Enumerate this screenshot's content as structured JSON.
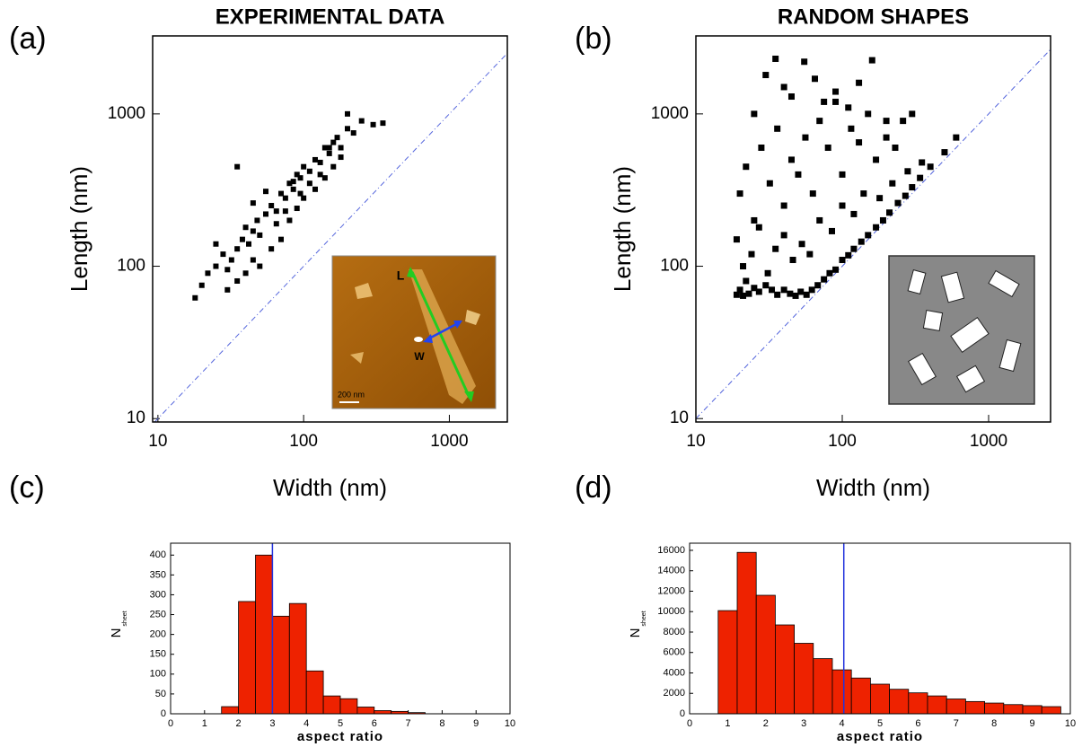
{
  "chart_data": [
    {
      "type": "scatter",
      "panel_label": "(a)",
      "title": "EXPERIMENTAL DATA",
      "xlabel": "Width (nm)",
      "ylabel": "Length (nm)",
      "log": true,
      "xlim": [
        9.2,
        2500
      ],
      "ylim": [
        9.5,
        3250
      ],
      "xticks": [
        10,
        100,
        1000
      ],
      "yticks": [
        10,
        100,
        1000
      ],
      "diagonal": true,
      "inset_labels": [
        "L",
        "W",
        "200 nm"
      ],
      "series": [
        {
          "color": "#000000",
          "x": [
            18,
            20,
            22,
            25,
            28,
            30,
            32,
            35,
            38,
            40,
            42,
            45,
            48,
            50,
            55,
            60,
            65,
            70,
            75,
            80,
            85,
            90,
            95,
            100,
            110,
            120,
            130,
            140,
            150,
            160,
            170,
            180,
            200,
            220,
            250,
            300,
            350,
            25,
            30,
            35,
            40,
            45,
            50,
            60,
            70,
            80,
            90,
            100,
            120,
            140,
            160,
            180,
            200,
            35,
            45,
            55,
            65,
            75,
            85,
            95,
            110,
            130,
            150
          ],
          "values": [
            62,
            75,
            90,
            100,
            120,
            95,
            110,
            130,
            150,
            180,
            140,
            170,
            200,
            160,
            220,
            250,
            230,
            300,
            280,
            350,
            320,
            400,
            380,
            450,
            420,
            500,
            480,
            600,
            550,
            650,
            700,
            600,
            800,
            750,
            900,
            850,
            870,
            140,
            70,
            80,
            90,
            110,
            100,
            130,
            150,
            200,
            240,
            280,
            320,
            380,
            450,
            520,
            1000,
            450,
            260,
            310,
            190,
            230,
            360,
            300,
            350,
            400,
            600
          ]
        }
      ]
    },
    {
      "type": "scatter",
      "panel_label": "(b)",
      "title": "RANDOM SHAPES",
      "xlabel": "Width (nm)",
      "ylabel": "Length (nm)",
      "log": true,
      "xlim": [
        10,
        2650
      ],
      "ylim": [
        9.5,
        3250
      ],
      "xticks": [
        10,
        100,
        1000
      ],
      "yticks": [
        10,
        100,
        1000
      ],
      "diagonal": true,
      "series": [
        {
          "color": "#000000",
          "x": [
            19,
            20,
            21,
            22,
            23,
            25,
            27,
            30,
            33,
            36,
            40,
            44,
            48,
            52,
            57,
            62,
            68,
            75,
            82,
            90,
            100,
            110,
            120,
            135,
            150,
            170,
            190,
            210,
            240,
            270,
            300,
            340,
            400,
            500,
            600,
            20,
            22,
            25,
            28,
            32,
            36,
            40,
            45,
            50,
            56,
            63,
            70,
            80,
            90,
            100,
            115,
            130,
            150,
            170,
            200,
            230,
            260,
            300,
            25,
            30,
            35,
            40,
            45,
            55,
            65,
            75,
            90,
            110,
            130,
            160,
            200,
            19,
            21,
            24,
            27,
            31,
            35,
            40,
            46,
            53,
            60,
            70,
            85,
            100,
            120,
            140,
            180,
            220,
            280,
            350
          ],
          "values": [
            65,
            70,
            64,
            80,
            66,
            72,
            68,
            75,
            70,
            65,
            70,
            66,
            64,
            68,
            65,
            70,
            75,
            82,
            90,
            95,
            110,
            118,
            130,
            145,
            160,
            180,
            200,
            225,
            260,
            290,
            330,
            380,
            450,
            560,
            700,
            300,
            450,
            200,
            600,
            350,
            800,
            250,
            500,
            400,
            700,
            300,
            900,
            600,
            1200,
            400,
            800,
            650,
            1000,
            500,
            700,
            600,
            900,
            1000,
            1000,
            1800,
            2300,
            1500,
            1300,
            2200,
            1700,
            1200,
            1400,
            1100,
            1600,
            2250,
            900,
            150,
            100,
            120,
            180,
            90,
            130,
            160,
            110,
            140,
            120,
            200,
            170,
            250,
            220,
            300,
            280,
            350,
            420,
            480
          ]
        }
      ]
    },
    {
      "type": "histogram",
      "panel_label": "(c)",
      "xlabel": "aspect ratio",
      "ylabel": "N",
      "ylabel_sub": "sheet",
      "xlim": [
        0,
        10
      ],
      "ylim": [
        0,
        430
      ],
      "xticks": [
        0,
        1,
        2,
        3,
        4,
        5,
        6,
        7,
        8,
        9,
        10
      ],
      "yticks": [
        0,
        50,
        100,
        150,
        200,
        250,
        300,
        350,
        400
      ],
      "color": "#ee2200",
      "vline": 3,
      "vline_color": "#2233dd",
      "bins": [
        1.5,
        2,
        2.5,
        3,
        3.5,
        4,
        4.5,
        5,
        5.5,
        6,
        6.5,
        7,
        7.5
      ],
      "values": [
        18,
        283,
        400,
        246,
        278,
        108,
        45,
        38,
        17,
        8,
        6,
        3
      ]
    },
    {
      "type": "histogram",
      "panel_label": "(d)",
      "xlabel": "aspect ratio",
      "ylabel": "N",
      "ylabel_sub": "sheet",
      "xlim": [
        0,
        10
      ],
      "ylim": [
        0,
        16700
      ],
      "xticks": [
        0,
        1,
        2,
        3,
        4,
        5,
        6,
        7,
        8,
        9,
        10
      ],
      "yticks": [
        0,
        2000,
        4000,
        6000,
        8000,
        10000,
        12000,
        14000,
        16000
      ],
      "color": "#ee2200",
      "vline": 4.05,
      "vline_color": "#2233dd",
      "bins": [
        0.75,
        1.25,
        1.75,
        2.25,
        2.75,
        3.25,
        3.75,
        4.25,
        4.75,
        5.25,
        5.75,
        6.25,
        6.75,
        7.25,
        7.75,
        8.25,
        8.75,
        9.25,
        9.75
      ],
      "values": [
        10100,
        15800,
        11600,
        8700,
        6900,
        5400,
        4300,
        3500,
        2900,
        2400,
        2050,
        1750,
        1450,
        1200,
        1050,
        900,
        800,
        700
      ]
    }
  ]
}
